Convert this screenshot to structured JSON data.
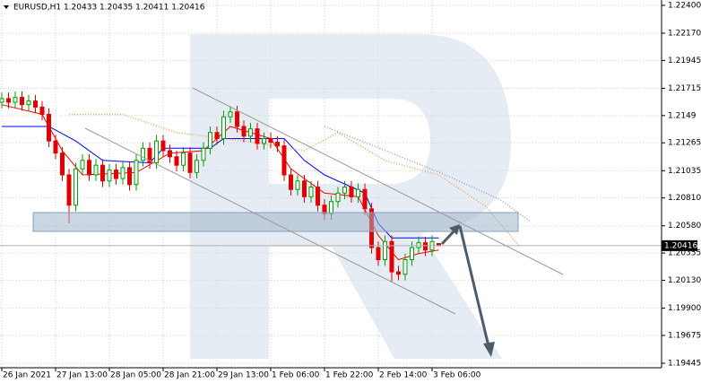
{
  "chart_data": {
    "type": "candlestick",
    "title": "EURUSD,H1  1.20433 1.20435 1.20411 1.20416",
    "last_price": 1.20416,
    "up_color": "#00a000",
    "down_color": "#e00000",
    "grid": true,
    "xlim": [
      -0.53,
      196.27
    ],
    "ylim": [
      1.19408,
      1.22444
    ],
    "xticks": [
      {
        "value": 0,
        "label": "26 Jan 2021"
      },
      {
        "value": 16,
        "label": "27 Jan 13:00"
      },
      {
        "value": 32,
        "label": "28 Jan 05:00"
      },
      {
        "value": 48,
        "label": "28 Jan 21:00"
      },
      {
        "value": 64,
        "label": "29 Jan 13:00"
      },
      {
        "value": 80,
        "label": "1 Feb 06:00"
      },
      {
        "value": 96,
        "label": "1 Feb 22:00"
      },
      {
        "value": 112,
        "label": "2 Feb 14:00"
      },
      {
        "value": 128,
        "label": "3 Feb 06:00"
      }
    ],
    "yticks": [
      {
        "value": 1.224,
        "label": "1.22400"
      },
      {
        "value": 1.2217,
        "label": "1.22170"
      },
      1.21945,
      1.21715,
      1.2149,
      1.21265,
      1.21035,
      {
        "value": 1.2081,
        "label": "1.20810"
      },
      {
        "value": 1.2058,
        "label": "1.20580"
      },
      1.20355,
      {
        "value": 1.2013,
        "label": "1.20130"
      },
      {
        "value": 1.199,
        "label": "1.19900"
      },
      1.19675,
      1.19445
    ],
    "x": [
      0,
      2,
      4,
      6,
      8,
      10,
      12,
      14,
      16,
      18,
      20,
      22,
      24,
      26,
      28,
      30,
      32,
      34,
      36,
      38,
      40,
      42,
      44,
      46,
      48,
      50,
      52,
      54,
      56,
      58,
      60,
      62,
      64,
      66,
      68,
      70,
      72,
      74,
      76,
      78,
      80,
      82,
      84,
      86,
      88,
      90,
      92,
      94,
      96,
      98,
      100,
      102,
      104,
      106,
      108,
      110,
      112,
      114,
      116,
      118,
      120,
      122,
      124,
      126,
      128,
      130
    ],
    "open": [
      1.216,
      1.2163,
      1.216,
      1.2164,
      1.2158,
      1.2161,
      1.2156,
      1.215,
      1.2128,
      1.2118,
      1.21,
      1.2075,
      1.2105,
      1.2112,
      1.21,
      1.2108,
      1.2095,
      1.2104,
      1.2097,
      1.2106,
      1.2092,
      1.2112,
      1.2122,
      1.211,
      1.2128,
      1.212,
      1.2115,
      1.2108,
      1.2118,
      1.2102,
      1.2112,
      1.2122,
      1.2135,
      1.213,
      1.2148,
      1.2152,
      1.214,
      1.2132,
      1.2138,
      1.2126,
      1.213,
      1.2127,
      1.2124,
      1.21,
      1.2088,
      1.2095,
      1.2082,
      1.209,
      1.2075,
      1.2068,
      1.2078,
      1.2085,
      1.209,
      1.2082,
      1.2088,
      1.2072,
      1.204,
      1.203,
      1.2045,
      1.202,
      1.2018,
      1.203,
      1.204,
      1.2044,
      1.2038,
      1.20433
    ],
    "high": [
      1.2168,
      1.2168,
      1.2169,
      1.2169,
      1.2166,
      1.2166,
      1.2161,
      1.2155,
      1.2133,
      1.2123,
      1.2105,
      1.211,
      1.2117,
      1.2117,
      1.2113,
      1.2113,
      1.2109,
      1.2109,
      1.2111,
      1.2111,
      1.2117,
      1.2127,
      1.2127,
      1.2133,
      1.2133,
      1.2125,
      1.212,
      1.2123,
      1.2123,
      1.2117,
      1.2127,
      1.214,
      1.214,
      1.2153,
      1.2157,
      1.2157,
      1.2145,
      1.2143,
      1.2143,
      1.2135,
      1.2135,
      1.2132,
      1.2129,
      1.2105,
      1.21,
      1.21,
      1.2095,
      1.2095,
      1.208,
      1.2083,
      1.209,
      1.2095,
      1.2095,
      1.2093,
      1.2093,
      1.2077,
      1.2045,
      1.205,
      1.205,
      1.2025,
      1.2035,
      1.2045,
      1.2049,
      1.2049,
      1.205,
      1.20435
    ],
    "low": [
      1.2155,
      1.2155,
      1.2155,
      1.2153,
      1.2153,
      1.2151,
      1.2145,
      1.2123,
      1.2113,
      1.2095,
      1.206,
      1.207,
      1.21,
      1.2095,
      1.2095,
      1.209,
      1.209,
      1.2092,
      1.2092,
      1.2087,
      1.2087,
      1.2107,
      1.2105,
      1.2105,
      1.2115,
      1.211,
      1.2103,
      1.2103,
      1.2097,
      1.2097,
      1.2107,
      1.2117,
      1.2125,
      1.2125,
      1.2143,
      1.2135,
      1.2127,
      1.2127,
      1.2121,
      1.2121,
      1.2122,
      1.2119,
      1.2095,
      1.2083,
      1.2083,
      1.2077,
      1.2077,
      1.207,
      1.2063,
      1.2063,
      1.2073,
      1.208,
      1.2077,
      1.2077,
      1.2067,
      1.2035,
      1.2025,
      1.2025,
      1.2012,
      1.2013,
      1.2013,
      1.2025,
      1.2035,
      1.2033,
      1.2033,
      1.20411
    ],
    "close": [
      1.2163,
      1.216,
      1.2164,
      1.2158,
      1.2161,
      1.2156,
      1.215,
      1.2128,
      1.2118,
      1.21,
      1.2075,
      1.2105,
      1.2112,
      1.21,
      1.2108,
      1.2095,
      1.2104,
      1.2097,
      1.2106,
      1.2092,
      1.2112,
      1.2122,
      1.211,
      1.2128,
      1.212,
      1.2115,
      1.2108,
      1.2118,
      1.2102,
      1.2112,
      1.2122,
      1.2135,
      1.213,
      1.2148,
      1.2152,
      1.214,
      1.2132,
      1.2138,
      1.2126,
      1.213,
      1.2127,
      1.2124,
      1.21,
      1.2088,
      1.2095,
      1.2082,
      1.209,
      1.2075,
      1.2068,
      1.2078,
      1.2085,
      1.209,
      1.2082,
      1.2088,
      1.2072,
      1.204,
      1.203,
      1.2045,
      1.202,
      1.2018,
      1.203,
      1.204,
      1.2044,
      1.2038,
      1.2045,
      1.20416
    ],
    "lines": [
      {
        "color": "#0000ff",
        "style": "solid",
        "x": [
          0,
          14,
          22,
          30,
          44,
          48,
          62,
          66,
          84,
          90,
          96,
          108,
          112,
          116,
          130
        ],
        "values": [
          1.214,
          1.214,
          1.2128,
          1.2112,
          1.211,
          1.2122,
          1.2122,
          1.213,
          1.213,
          1.2112,
          1.21,
          1.2085,
          1.206,
          1.2048,
          1.2048
        ]
      },
      {
        "color": "#ff0000",
        "style": "solid",
        "x": [
          0,
          12,
          18,
          24,
          40,
          50,
          60,
          68,
          80,
          86,
          96,
          106,
          112,
          118,
          124,
          130
        ],
        "values": [
          1.2158,
          1.215,
          1.212,
          1.21,
          1.2102,
          1.2118,
          1.212,
          1.214,
          1.213,
          1.2105,
          1.2085,
          1.2082,
          1.205,
          1.203,
          1.2035,
          1.2038
        ]
      },
      {
        "color": "#f5a060",
        "style": "dotted",
        "x": [
          20,
          36,
          52,
          72,
          90,
          100,
          114,
          130,
          144,
          154
        ],
        "values": [
          1.215,
          1.215,
          1.2135,
          1.2128,
          1.212,
          1.2135,
          1.2112,
          1.21,
          1.2074,
          1.2041
        ]
      },
      {
        "color": "#9a9ad8",
        "style": "dotted",
        "x": [
          96,
          116,
          132,
          148,
          157
        ],
        "values": [
          1.214,
          1.2118,
          1.21,
          1.208,
          1.2062
        ]
      }
    ]
  }
}
